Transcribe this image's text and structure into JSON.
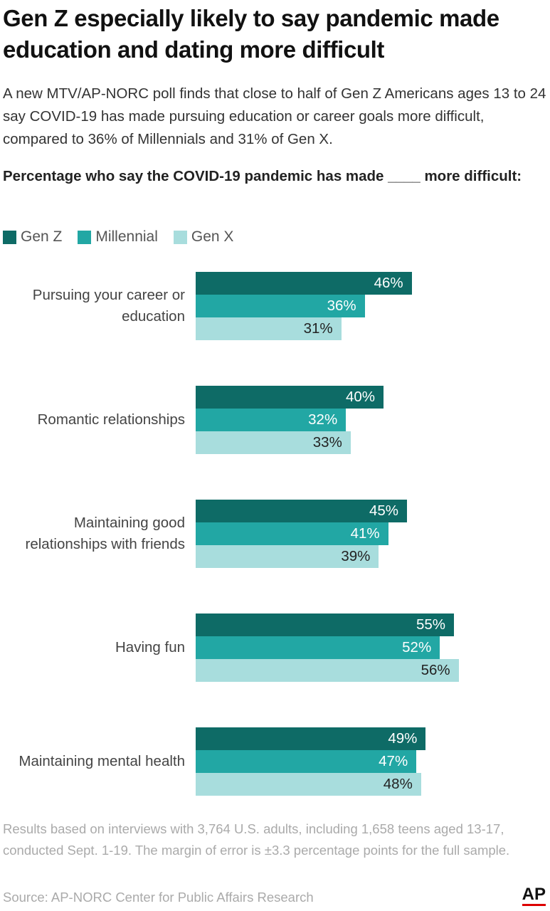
{
  "chart_data": {
    "type": "bar",
    "orientation": "horizontal",
    "title": "Gen Z especially likely to say pandemic made education and dating more difficult",
    "subtitle": "A new MTV/AP-NORC poll finds that close to half of Gen Z Americans ages 13 to 24 say COVID-19 has made pursuing education or career goals more difficult, compared to 36% of Millennials and 31% of Gen X.",
    "chart_title": "Percentage who say the COVID-19 pandemic has made ____ more difficult:",
    "categories": [
      "Pursuing your career or education",
      "Romantic relationships",
      "Maintaining good relationships with friends",
      "Having fun",
      "Maintaining mental health"
    ],
    "series": [
      {
        "name": "Gen Z",
        "color": "#0e6b66",
        "values": [
          46,
          40,
          45,
          55,
          49
        ],
        "value_labels": [
          "46%",
          "40%",
          "45%",
          "55%",
          "49%"
        ]
      },
      {
        "name": "Millennial",
        "color": "#22a7a4",
        "values": [
          36,
          32,
          41,
          52,
          47
        ],
        "value_labels": [
          "36%",
          "32%",
          "41%",
          "52%",
          "47%"
        ]
      },
      {
        "name": "Gen X",
        "color": "#a8dddd",
        "values": [
          31,
          33,
          39,
          56,
          48
        ],
        "value_labels": [
          "31%",
          "33%",
          "39%",
          "56%",
          "48%"
        ]
      }
    ],
    "legend": "top-left",
    "note": "Results based on interviews with 3,764 U.S. adults, including 1,658 teens aged 13-17, conducted Sept. 1-19. The margin of error is ±3.3 percentage points for the full sample.",
    "source": "Source: AP-NORC Center for Public Affairs Research",
    "logo": "AP"
  }
}
